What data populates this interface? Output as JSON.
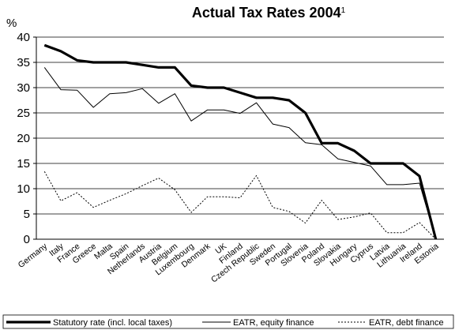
{
  "chart_data": {
    "type": "line",
    "title": "Actual Tax Rates 2004",
    "title_footnote": "1",
    "ylabel": "%",
    "ylim": [
      0,
      40
    ],
    "yticks": [
      0,
      5,
      10,
      15,
      20,
      25,
      30,
      35,
      40
    ],
    "grid": "horizontal",
    "legend_position": "bottom",
    "categories": [
      "Germany",
      "Italy",
      "France",
      "Greece",
      "Malta",
      "Spain",
      "Netherlands",
      "Austria",
      "Belgium",
      "Luxembourg",
      "Denmark",
      "UK",
      "Finland",
      "Czech Republic",
      "Sweden",
      "Portugal",
      "Slovenia",
      "Poland",
      "Slovakia",
      "Hungary",
      "Cyprus",
      "Latvia",
      "Lithuania",
      "Ireland",
      "Estonia"
    ],
    "series": [
      {
        "name": "Statutory rate (incl. local taxes)",
        "style": "thick-solid",
        "color": "#000000",
        "values": [
          38.4,
          37.2,
          35.4,
          35.0,
          35.0,
          35.0,
          34.5,
          34.0,
          34.0,
          30.4,
          30.0,
          30.0,
          29.0,
          28.0,
          28.0,
          27.5,
          25.0,
          19.0,
          19.0,
          17.5,
          15.0,
          15.0,
          15.0,
          12.5,
          0.0
        ]
      },
      {
        "name": "EATR, equity finance",
        "style": "thin-solid",
        "color": "#000000",
        "values": [
          34.0,
          29.6,
          29.5,
          26.1,
          28.8,
          29.0,
          29.8,
          26.9,
          28.8,
          23.4,
          25.6,
          25.6,
          24.9,
          27.0,
          22.8,
          22.1,
          19.1,
          18.7,
          15.9,
          15.2,
          14.5,
          10.8,
          10.8,
          11.1,
          0.0
        ]
      },
      {
        "name": "EATR, debt finance",
        "style": "dotted",
        "color": "#000000",
        "values": [
          13.4,
          7.6,
          9.2,
          6.3,
          7.7,
          9.0,
          10.6,
          12.1,
          9.8,
          5.3,
          8.4,
          8.4,
          8.2,
          12.6,
          6.3,
          5.5,
          3.2,
          7.7,
          3.9,
          4.4,
          5.2,
          1.3,
          1.3,
          3.3,
          0.0
        ]
      }
    ]
  }
}
